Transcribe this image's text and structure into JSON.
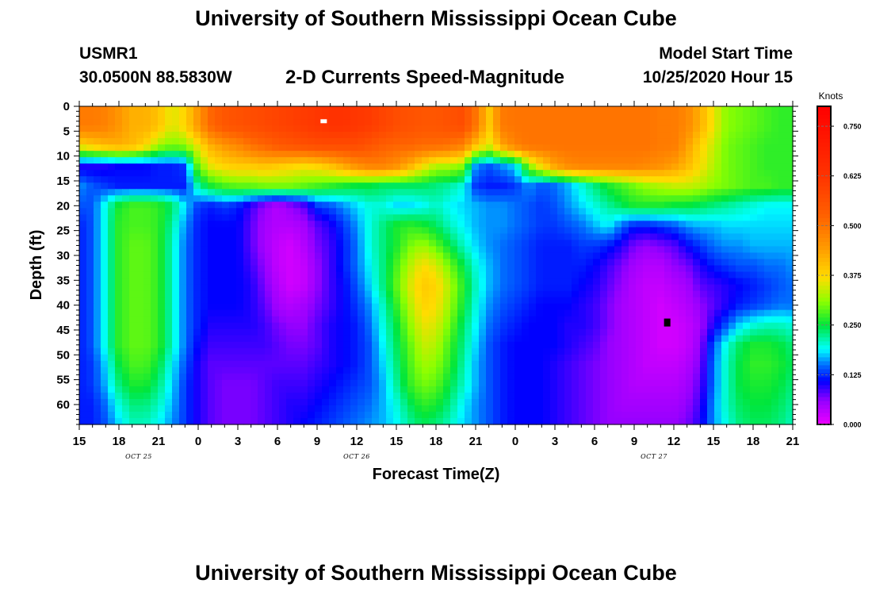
{
  "header": {
    "title": "University of Southern Mississippi Ocean Cube",
    "station": "USMR1",
    "coordinates": "30.0500N 88.5830W",
    "product": "2-D Currents Speed-Magnitude",
    "start_label": "Model Start Time",
    "start_value": "10/25/2020 Hour 15"
  },
  "footer": {
    "title": "University of Southern Mississippi Ocean Cube"
  },
  "chart_data": {
    "type": "heatmap",
    "title": "2-D Currents Speed-Magnitude",
    "xlabel": "Forecast Time(Z)",
    "ylabel": "Depth (ft)",
    "x_tick_labels": [
      "15",
      "18",
      "21",
      "0",
      "3",
      "6",
      "9",
      "12",
      "15",
      "18",
      "21",
      "0",
      "3",
      "6",
      "9",
      "12",
      "15",
      "18",
      "21"
    ],
    "x_range_hours": [
      0,
      54
    ],
    "date_labels": [
      {
        "text": "OCT 25",
        "hour": 4.5
      },
      {
        "text": "OCT 26",
        "hour": 21
      },
      {
        "text": "OCT 27",
        "hour": 43.5
      }
    ],
    "y_tick_labels": [
      "0",
      "5",
      "10",
      "15",
      "20",
      "25",
      "30",
      "35",
      "40",
      "45",
      "50",
      "55",
      "60"
    ],
    "y_range": [
      0,
      64
    ],
    "y_inverted": true,
    "colorbar": {
      "unit_label": "Knots",
      "min": 0,
      "max": 0.8,
      "tick_labels": [
        "0.750",
        "0.625",
        "0.500",
        "0.375",
        "0.250",
        "0.125",
        "0.000"
      ],
      "tick_values": [
        0.75,
        0.625,
        0.5,
        0.375,
        0.25,
        0.125,
        0.0
      ]
    },
    "markers": [
      {
        "type": "maximum",
        "hour": 18.5,
        "depth": 3,
        "color": "#ffffff"
      },
      {
        "type": "minimum",
        "hour": 44.5,
        "depth": 43.5,
        "color": "#000000"
      }
    ],
    "hours": [
      0,
      1,
      2,
      3,
      4,
      5,
      6,
      7,
      8,
      9,
      10,
      11,
      12,
      13,
      14,
      15,
      16,
      17,
      18,
      19,
      20,
      21,
      22,
      23,
      24,
      25,
      26,
      27,
      28,
      29,
      30,
      31,
      32,
      33,
      34,
      35,
      36,
      37,
      38,
      39,
      40,
      41,
      42,
      43,
      44,
      45,
      46,
      47,
      48,
      49,
      50,
      51,
      52,
      53,
      54
    ],
    "depths": [
      0,
      4,
      8,
      12,
      16,
      20,
      24,
      28,
      32,
      36,
      40,
      44,
      48,
      52,
      56,
      60,
      64
    ],
    "speed_knots": [
      [
        0.49,
        0.49,
        0.48,
        0.45,
        0.42,
        0.42,
        0.4,
        0.35,
        0.38,
        0.45,
        0.52,
        0.55,
        0.56,
        0.57,
        0.58,
        0.59,
        0.6,
        0.61,
        0.62,
        0.63,
        0.63,
        0.62,
        0.61,
        0.59,
        0.57,
        0.56,
        0.55,
        0.55,
        0.56,
        0.57,
        0.5,
        0.39,
        0.49,
        0.5,
        0.5,
        0.5,
        0.5,
        0.5,
        0.5,
        0.5,
        0.5,
        0.5,
        0.5,
        0.5,
        0.49,
        0.49,
        0.47,
        0.42,
        0.36,
        0.31,
        0.3,
        0.29,
        0.28,
        0.27,
        0.27
      ],
      [
        0.49,
        0.49,
        0.48,
        0.45,
        0.42,
        0.42,
        0.4,
        0.35,
        0.38,
        0.45,
        0.52,
        0.55,
        0.56,
        0.57,
        0.58,
        0.59,
        0.6,
        0.61,
        0.62,
        0.63,
        0.63,
        0.62,
        0.61,
        0.59,
        0.57,
        0.56,
        0.55,
        0.55,
        0.56,
        0.57,
        0.5,
        0.39,
        0.49,
        0.5,
        0.5,
        0.5,
        0.5,
        0.5,
        0.5,
        0.5,
        0.5,
        0.5,
        0.5,
        0.5,
        0.49,
        0.49,
        0.47,
        0.42,
        0.36,
        0.31,
        0.3,
        0.29,
        0.28,
        0.27,
        0.27
      ],
      [
        0.37,
        0.39,
        0.41,
        0.42,
        0.41,
        0.38,
        0.32,
        0.3,
        0.31,
        0.36,
        0.42,
        0.45,
        0.47,
        0.5,
        0.52,
        0.54,
        0.55,
        0.56,
        0.57,
        0.57,
        0.57,
        0.57,
        0.55,
        0.53,
        0.52,
        0.52,
        0.51,
        0.51,
        0.5,
        0.48,
        0.4,
        0.35,
        0.43,
        0.48,
        0.5,
        0.5,
        0.5,
        0.5,
        0.5,
        0.5,
        0.5,
        0.5,
        0.5,
        0.5,
        0.49,
        0.49,
        0.44,
        0.38,
        0.34,
        0.3,
        0.29,
        0.28,
        0.27,
        0.27,
        0.27
      ],
      [
        0.1,
        0.1,
        0.1,
        0.11,
        0.11,
        0.11,
        0.12,
        0.12,
        0.13,
        0.3,
        0.36,
        0.38,
        0.39,
        0.39,
        0.4,
        0.39,
        0.38,
        0.37,
        0.38,
        0.4,
        0.43,
        0.46,
        0.48,
        0.48,
        0.46,
        0.42,
        0.37,
        0.33,
        0.33,
        0.31,
        0.16,
        0.14,
        0.16,
        0.18,
        0.31,
        0.38,
        0.44,
        0.47,
        0.48,
        0.48,
        0.48,
        0.48,
        0.48,
        0.47,
        0.46,
        0.44,
        0.41,
        0.37,
        0.33,
        0.3,
        0.29,
        0.28,
        0.27,
        0.27,
        0.27
      ],
      [
        0.16,
        0.14,
        0.13,
        0.12,
        0.12,
        0.12,
        0.12,
        0.12,
        0.12,
        0.22,
        0.26,
        0.28,
        0.29,
        0.29,
        0.3,
        0.3,
        0.3,
        0.29,
        0.28,
        0.27,
        0.26,
        0.25,
        0.25,
        0.24,
        0.24,
        0.24,
        0.24,
        0.23,
        0.22,
        0.2,
        0.13,
        0.12,
        0.12,
        0.13,
        0.16,
        0.14,
        0.15,
        0.17,
        0.2,
        0.23,
        0.26,
        0.28,
        0.3,
        0.32,
        0.33,
        0.34,
        0.34,
        0.33,
        0.31,
        0.3,
        0.29,
        0.28,
        0.28,
        0.27,
        0.27
      ],
      [
        0.14,
        0.14,
        0.2,
        0.26,
        0.28,
        0.28,
        0.27,
        0.24,
        0.18,
        0.13,
        0.12,
        0.13,
        0.12,
        0.09,
        0.06,
        0.04,
        0.06,
        0.08,
        0.13,
        0.14,
        0.16,
        0.18,
        0.2,
        0.2,
        0.18,
        0.18,
        0.19,
        0.21,
        0.19,
        0.18,
        0.17,
        0.16,
        0.16,
        0.15,
        0.14,
        0.13,
        0.14,
        0.16,
        0.18,
        0.2,
        0.22,
        0.24,
        0.26,
        0.26,
        0.26,
        0.25,
        0.25,
        0.24,
        0.23,
        0.22,
        0.21,
        0.2,
        0.19,
        0.19,
        0.19
      ],
      [
        0.12,
        0.14,
        0.2,
        0.27,
        0.28,
        0.28,
        0.27,
        0.22,
        0.16,
        0.12,
        0.11,
        0.11,
        0.11,
        0.08,
        0.05,
        0.04,
        0.04,
        0.05,
        0.08,
        0.1,
        0.13,
        0.16,
        0.2,
        0.23,
        0.26,
        0.27,
        0.26,
        0.24,
        0.21,
        0.19,
        0.17,
        0.16,
        0.16,
        0.15,
        0.14,
        0.13,
        0.13,
        0.14,
        0.15,
        0.17,
        0.19,
        0.15,
        0.12,
        0.12,
        0.13,
        0.14,
        0.16,
        0.17,
        0.17,
        0.18,
        0.18,
        0.18,
        0.18,
        0.18,
        0.18
      ],
      [
        0.12,
        0.14,
        0.2,
        0.27,
        0.29,
        0.29,
        0.27,
        0.21,
        0.15,
        0.12,
        0.11,
        0.11,
        0.11,
        0.08,
        0.05,
        0.03,
        0.02,
        0.04,
        0.07,
        0.09,
        0.12,
        0.15,
        0.2,
        0.23,
        0.26,
        0.3,
        0.32,
        0.29,
        0.25,
        0.21,
        0.18,
        0.16,
        0.15,
        0.14,
        0.13,
        0.12,
        0.12,
        0.12,
        0.13,
        0.13,
        0.12,
        0.1,
        0.07,
        0.06,
        0.07,
        0.08,
        0.11,
        0.13,
        0.15,
        0.16,
        0.16,
        0.17,
        0.17,
        0.17,
        0.17
      ],
      [
        0.12,
        0.14,
        0.2,
        0.27,
        0.29,
        0.29,
        0.27,
        0.21,
        0.15,
        0.12,
        0.11,
        0.11,
        0.11,
        0.09,
        0.06,
        0.03,
        0.02,
        0.03,
        0.06,
        0.09,
        0.12,
        0.15,
        0.19,
        0.23,
        0.28,
        0.33,
        0.37,
        0.35,
        0.3,
        0.25,
        0.2,
        0.17,
        0.15,
        0.14,
        0.13,
        0.12,
        0.12,
        0.12,
        0.12,
        0.11,
        0.09,
        0.07,
        0.05,
        0.04,
        0.04,
        0.06,
        0.07,
        0.1,
        0.12,
        0.13,
        0.14,
        0.14,
        0.15,
        0.15,
        0.16
      ],
      [
        0.12,
        0.14,
        0.2,
        0.27,
        0.29,
        0.29,
        0.27,
        0.21,
        0.15,
        0.12,
        0.11,
        0.11,
        0.11,
        0.1,
        0.07,
        0.04,
        0.02,
        0.03,
        0.06,
        0.09,
        0.11,
        0.14,
        0.18,
        0.23,
        0.29,
        0.35,
        0.39,
        0.38,
        0.33,
        0.27,
        0.21,
        0.17,
        0.15,
        0.14,
        0.13,
        0.12,
        0.12,
        0.12,
        0.11,
        0.1,
        0.08,
        0.06,
        0.04,
        0.03,
        0.03,
        0.04,
        0.05,
        0.08,
        0.09,
        0.1,
        0.11,
        0.12,
        0.13,
        0.14,
        0.15
      ],
      [
        0.12,
        0.14,
        0.2,
        0.27,
        0.29,
        0.29,
        0.27,
        0.21,
        0.15,
        0.12,
        0.11,
        0.11,
        0.11,
        0.1,
        0.08,
        0.05,
        0.04,
        0.05,
        0.07,
        0.09,
        0.11,
        0.13,
        0.16,
        0.21,
        0.27,
        0.33,
        0.38,
        0.37,
        0.32,
        0.26,
        0.2,
        0.16,
        0.14,
        0.13,
        0.12,
        0.11,
        0.11,
        0.11,
        0.1,
        0.09,
        0.07,
        0.05,
        0.04,
        0.03,
        0.02,
        0.03,
        0.04,
        0.06,
        0.08,
        0.1,
        0.12,
        0.13,
        0.14,
        0.15,
        0.15
      ],
      [
        0.12,
        0.14,
        0.2,
        0.27,
        0.29,
        0.29,
        0.27,
        0.21,
        0.15,
        0.12,
        0.1,
        0.1,
        0.1,
        0.1,
        0.09,
        0.07,
        0.06,
        0.06,
        0.08,
        0.1,
        0.11,
        0.12,
        0.15,
        0.2,
        0.25,
        0.31,
        0.36,
        0.35,
        0.3,
        0.24,
        0.19,
        0.15,
        0.13,
        0.12,
        0.11,
        0.11,
        0.11,
        0.1,
        0.1,
        0.09,
        0.07,
        0.05,
        0.04,
        0.03,
        0.02,
        0.02,
        0.03,
        0.05,
        0.1,
        0.14,
        0.18,
        0.2,
        0.21,
        0.21,
        0.2
      ],
      [
        0.12,
        0.14,
        0.2,
        0.27,
        0.29,
        0.29,
        0.27,
        0.21,
        0.15,
        0.11,
        0.09,
        0.09,
        0.09,
        0.09,
        0.09,
        0.08,
        0.07,
        0.07,
        0.08,
        0.1,
        0.11,
        0.12,
        0.14,
        0.19,
        0.24,
        0.29,
        0.34,
        0.33,
        0.28,
        0.23,
        0.18,
        0.14,
        0.12,
        0.11,
        0.11,
        0.11,
        0.11,
        0.1,
        0.09,
        0.08,
        0.06,
        0.05,
        0.04,
        0.03,
        0.02,
        0.02,
        0.03,
        0.06,
        0.14,
        0.2,
        0.24,
        0.26,
        0.26,
        0.25,
        0.23
      ],
      [
        0.12,
        0.13,
        0.18,
        0.25,
        0.28,
        0.28,
        0.25,
        0.19,
        0.14,
        0.1,
        0.08,
        0.08,
        0.08,
        0.08,
        0.08,
        0.08,
        0.08,
        0.08,
        0.09,
        0.1,
        0.11,
        0.12,
        0.14,
        0.18,
        0.23,
        0.28,
        0.32,
        0.31,
        0.27,
        0.22,
        0.17,
        0.14,
        0.12,
        0.11,
        0.11,
        0.11,
        0.1,
        0.09,
        0.08,
        0.07,
        0.06,
        0.05,
        0.04,
        0.03,
        0.03,
        0.03,
        0.04,
        0.07,
        0.15,
        0.21,
        0.25,
        0.27,
        0.27,
        0.26,
        0.24
      ],
      [
        0.12,
        0.13,
        0.17,
        0.23,
        0.26,
        0.26,
        0.23,
        0.18,
        0.13,
        0.1,
        0.08,
        0.07,
        0.07,
        0.07,
        0.08,
        0.09,
        0.09,
        0.09,
        0.1,
        0.11,
        0.12,
        0.13,
        0.14,
        0.17,
        0.22,
        0.27,
        0.3,
        0.29,
        0.25,
        0.21,
        0.17,
        0.14,
        0.12,
        0.11,
        0.11,
        0.11,
        0.1,
        0.09,
        0.08,
        0.07,
        0.06,
        0.05,
        0.04,
        0.04,
        0.04,
        0.04,
        0.05,
        0.08,
        0.15,
        0.21,
        0.25,
        0.26,
        0.26,
        0.25,
        0.23
      ],
      [
        0.12,
        0.12,
        0.15,
        0.2,
        0.23,
        0.23,
        0.21,
        0.17,
        0.13,
        0.1,
        0.08,
        0.07,
        0.07,
        0.07,
        0.08,
        0.09,
        0.1,
        0.1,
        0.11,
        0.12,
        0.13,
        0.14,
        0.15,
        0.17,
        0.2,
        0.24,
        0.27,
        0.26,
        0.23,
        0.19,
        0.16,
        0.14,
        0.12,
        0.11,
        0.11,
        0.11,
        0.1,
        0.09,
        0.08,
        0.07,
        0.06,
        0.05,
        0.05,
        0.05,
        0.05,
        0.05,
        0.06,
        0.09,
        0.16,
        0.21,
        0.24,
        0.25,
        0.25,
        0.24,
        0.22
      ],
      [
        0.12,
        0.12,
        0.14,
        0.18,
        0.21,
        0.21,
        0.19,
        0.16,
        0.13,
        0.1,
        0.08,
        0.07,
        0.07,
        0.07,
        0.08,
        0.09,
        0.1,
        0.11,
        0.12,
        0.13,
        0.14,
        0.15,
        0.16,
        0.17,
        0.19,
        0.22,
        0.24,
        0.23,
        0.21,
        0.18,
        0.16,
        0.14,
        0.12,
        0.11,
        0.11,
        0.11,
        0.1,
        0.09,
        0.08,
        0.07,
        0.06,
        0.06,
        0.06,
        0.06,
        0.06,
        0.06,
        0.07,
        0.1,
        0.16,
        0.2,
        0.23,
        0.24,
        0.24,
        0.23,
        0.21
      ]
    ]
  }
}
